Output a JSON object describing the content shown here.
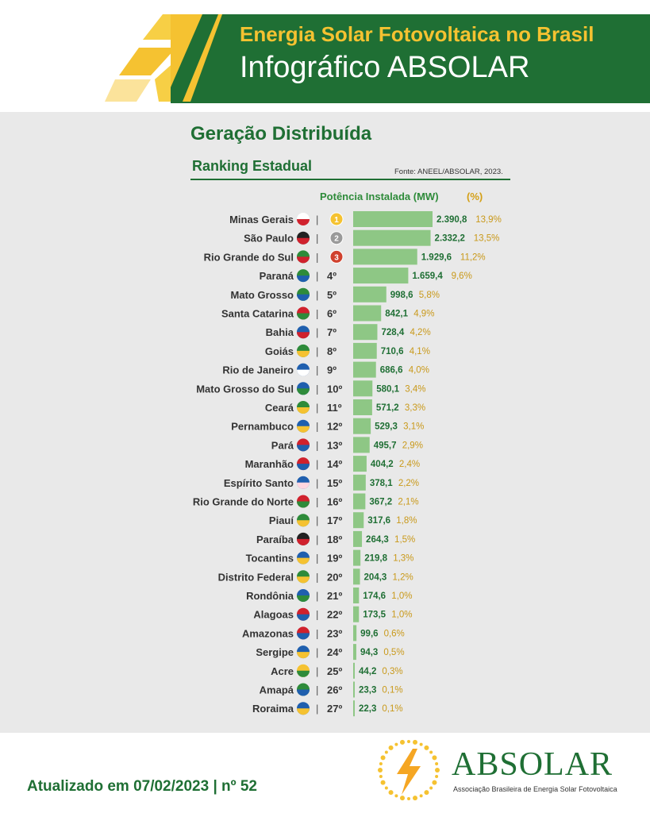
{
  "header": {
    "title": "Energia Solar Fotovoltaica no Brasil",
    "subtitle": "Infográfico ABSOLAR"
  },
  "section": {
    "title": "Geração Distribuída",
    "subtitle": "Ranking Estadual",
    "source": "Fonte: ANEEL/ABSOLAR, 2023."
  },
  "columns": {
    "mw": "Potência Instalada (MW)",
    "pct": "(%)"
  },
  "colors": {
    "green": "#1f6f34",
    "bar": "#8ec785",
    "value": "#1f6f34",
    "percent": "#c9991a",
    "gold": "#f5c231"
  },
  "chart_data": {
    "type": "bar",
    "orientation": "horizontal",
    "title": "Ranking Estadual",
    "categories": [
      "Minas Gerais",
      "São Paulo",
      "Rio Grande do Sul",
      "Paraná",
      "Mato Grosso",
      "Santa Catarina",
      "Bahia",
      "Goiás",
      "Rio de Janeiro",
      "Mato Grosso do Sul",
      "Ceará",
      "Pernambuco",
      "Pará",
      "Maranhão",
      "Espírito Santo",
      "Rio Grande do Norte",
      "Piauí",
      "Paraíba",
      "Tocantins",
      "Distrito Federal",
      "Rondônia",
      "Alagoas",
      "Amazonas",
      "Sergipe",
      "Acre",
      "Amapá",
      "Roraima"
    ],
    "ranks": [
      "1º",
      "2º",
      "3º",
      "4º",
      "5º",
      "6º",
      "7º",
      "8º",
      "9º",
      "10º",
      "11º",
      "12º",
      "13º",
      "14º",
      "15º",
      "16º",
      "17º",
      "18º",
      "19º",
      "20º",
      "21º",
      "22º",
      "23º",
      "24º",
      "25º",
      "26º",
      "27º"
    ],
    "values": [
      2390.8,
      2332.2,
      1929.6,
      1659.4,
      998.6,
      842.1,
      728.4,
      710.6,
      686.6,
      580.1,
      571.2,
      529.3,
      495.7,
      404.2,
      378.1,
      367.2,
      317.6,
      264.3,
      219.8,
      204.3,
      174.6,
      173.5,
      99.6,
      94.3,
      44.2,
      23.3,
      22.3
    ],
    "value_labels": [
      "2.390,8",
      "2.332,2",
      "1.929,6",
      "1.659,4",
      "998,6",
      "842,1",
      "728,4",
      "710,6",
      "686,6",
      "580,1",
      "571,2",
      "529,3",
      "495,7",
      "404,2",
      "378,1",
      "367,2",
      "317,6",
      "264,3",
      "219,8",
      "204,3",
      "174,6",
      "173,5",
      "99,6",
      "94,3",
      "44,2",
      "23,3",
      "22,3"
    ],
    "percent_labels": [
      "13,9%",
      "13,5%",
      "11,2%",
      "9,6%",
      "5,8%",
      "4,9%",
      "4,2%",
      "4,1%",
      "4,0%",
      "3,4%",
      "3,3%",
      "3,1%",
      "2,9%",
      "2,4%",
      "2,2%",
      "2,1%",
      "1,8%",
      "1,5%",
      "1,3%",
      "1,2%",
      "1,0%",
      "1,0%",
      "0,6%",
      "0,5%",
      "0,3%",
      "0,1%",
      "0,1%"
    ],
    "flag_colors": [
      [
        "#ffffff",
        "#d0212d"
      ],
      [
        "#222222",
        "#d0212d"
      ],
      [
        "#2e8b3a",
        "#d0212d"
      ],
      [
        "#2e8b3a",
        "#1f5fae"
      ],
      [
        "#2e8b3a",
        "#1f5fae"
      ],
      [
        "#d0212d",
        "#2e8b3a"
      ],
      [
        "#1f5fae",
        "#d0212d"
      ],
      [
        "#2e8b3a",
        "#f5c231"
      ],
      [
        "#1f5fae",
        "#ffffff"
      ],
      [
        "#1f5fae",
        "#2e8b3a"
      ],
      [
        "#2e8b3a",
        "#f5c231"
      ],
      [
        "#1f5fae",
        "#f5c231"
      ],
      [
        "#d0212d",
        "#1f5fae"
      ],
      [
        "#d0212d",
        "#1f5fae"
      ],
      [
        "#1f5fae",
        "#ffd6e0"
      ],
      [
        "#d0212d",
        "#2e8b3a"
      ],
      [
        "#2e8b3a",
        "#f5c231"
      ],
      [
        "#222222",
        "#d0212d"
      ],
      [
        "#1f5fae",
        "#f5c231"
      ],
      [
        "#2e8b3a",
        "#f5c231"
      ],
      [
        "#1f5fae",
        "#2e8b3a"
      ],
      [
        "#d0212d",
        "#1f5fae"
      ],
      [
        "#d0212d",
        "#1f5fae"
      ],
      [
        "#1f5fae",
        "#f5c231"
      ],
      [
        "#f5c231",
        "#2e8b3a"
      ],
      [
        "#2e8b3a",
        "#1f5fae"
      ],
      [
        "#1f5fae",
        "#f5c231"
      ]
    ],
    "medals": [
      "gold",
      "silver",
      "bronze"
    ],
    "xlim": [
      0,
      2390.8
    ]
  },
  "footer": {
    "updated": "Atualizado em 07/02/2023 | nº 52",
    "logo_name": "ABSOLAR",
    "logo_sub": "Associação Brasileira de Energia Solar Fotovoltaica"
  }
}
